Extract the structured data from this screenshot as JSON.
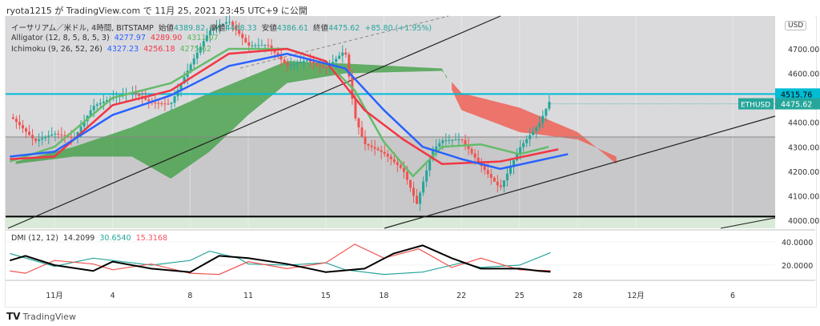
{
  "header": {
    "published": "ryota1215 が TradingView.com で 11月 25, 2021 23:45 UTC+9 に公開"
  },
  "legend": {
    "symbol": "イーサリアム／米ドル, 4時間, BITSTAMP",
    "open_label": "始値",
    "open": "4389.82",
    "high_label": "高値",
    "high": "4488.33",
    "low_label": "安値",
    "low": "4386.61",
    "close_label": "終値",
    "close": "4475.62",
    "change": "+85.80 (+1.95%)",
    "alligator": {
      "label": "Alligator (12, 8, 5, 8, 5, 3)",
      "v1": "4277.97",
      "v2": "4289.90",
      "v3": "4311.07"
    },
    "ichimoku": {
      "label": "Ichimoku (9, 26, 52, 26)",
      "v1": "4327.23",
      "v2": "4256.18",
      "v3": "4275.62"
    },
    "dmi": {
      "label": "DMI (12, 12)",
      "adx": "14.2099",
      "plus": "30.6540",
      "minus": "15.3168"
    }
  },
  "currency": "USD",
  "price_labels": {
    "hline": "4515.76",
    "symbol": "ETHUSD",
    "last": "4475.62"
  },
  "footer": {
    "logo_text": "TradingView"
  },
  "colors": {
    "up": "#26a69a",
    "down": "#ef5350",
    "jaw": "#2962ff",
    "teeth": "#f23645",
    "lips": "#66bb6a",
    "cloud_up": "#43a047",
    "cloud_down": "#f05a4f",
    "hline": "#00bcd4",
    "adx": "#000000"
  },
  "chart_data": {
    "type": "line",
    "price_axis": {
      "ticks": [
        "4000.00",
        "4100.00",
        "4200.00",
        "4300.00",
        "4400.00",
        "4600.00",
        "4700.00"
      ],
      "range": [
        3960,
        4810
      ]
    },
    "dmi_axis": {
      "ticks": [
        "20.0000",
        "40.0000"
      ]
    },
    "x_ticks": [
      {
        "day": 0,
        "label": "11月"
      },
      {
        "day": 3,
        "label": "4"
      },
      {
        "day": 7,
        "label": "8"
      },
      {
        "day": 10,
        "label": "11"
      },
      {
        "day": 14,
        "label": "15"
      },
      {
        "day": 17,
        "label": "18"
      },
      {
        "day": 21,
        "label": "22"
      },
      {
        "day": 24,
        "label": "25"
      },
      {
        "day": 27,
        "label": "28"
      },
      {
        "day": 30,
        "label": "12月"
      },
      {
        "day": 35,
        "label": "6"
      }
    ],
    "price_close": [
      [
        -2.3,
        4420
      ],
      [
        -1,
        4300
      ],
      [
        0,
        4330
      ],
      [
        1,
        4320
      ],
      [
        2,
        4470
      ],
      [
        3,
        4520
      ],
      [
        4,
        4550
      ],
      [
        5,
        4500
      ],
      [
        6,
        4480
      ],
      [
        7,
        4620
      ],
      [
        8,
        4750
      ],
      [
        9,
        4790
      ],
      [
        10,
        4700
      ],
      [
        11,
        4720
      ],
      [
        12,
        4650
      ],
      [
        13,
        4680
      ],
      [
        14,
        4640
      ],
      [
        15,
        4700
      ],
      [
        15.5,
        4420
      ],
      [
        16,
        4300
      ],
      [
        17,
        4250
      ],
      [
        18,
        4180
      ],
      [
        18.7,
        4050
      ],
      [
        19.5,
        4280
      ],
      [
        20,
        4330
      ],
      [
        21,
        4350
      ],
      [
        22,
        4250
      ],
      [
        23,
        4150
      ],
      [
        24,
        4300
      ],
      [
        25,
        4380
      ],
      [
        25.6,
        4475
      ]
    ],
    "alligator_jaw": [
      [
        -2.3,
        4260
      ],
      [
        0,
        4280
      ],
      [
        3,
        4430
      ],
      [
        6,
        4510
      ],
      [
        9,
        4630
      ],
      [
        12,
        4680
      ],
      [
        15,
        4620
      ],
      [
        17,
        4450
      ],
      [
        19,
        4300
      ],
      [
        21,
        4250
      ],
      [
        23,
        4210
      ],
      [
        26.5,
        4270
      ]
    ],
    "alligator_teeth": [
      [
        -2.3,
        4250
      ],
      [
        0,
        4260
      ],
      [
        3,
        4470
      ],
      [
        6,
        4530
      ],
      [
        9,
        4680
      ],
      [
        12,
        4700
      ],
      [
        14,
        4650
      ],
      [
        16,
        4450
      ],
      [
        18,
        4330
      ],
      [
        20,
        4230
      ],
      [
        23,
        4240
      ],
      [
        26,
        4290
      ]
    ],
    "alligator_lips": [
      [
        -2.3,
        4240
      ],
      [
        0,
        4300
      ],
      [
        3,
        4500
      ],
      [
        6,
        4560
      ],
      [
        9,
        4700
      ],
      [
        12,
        4700
      ],
      [
        14,
        4650
      ],
      [
        15.5,
        4530
      ],
      [
        17,
        4320
      ],
      [
        18.5,
        4180
      ],
      [
        20,
        4300
      ],
      [
        22,
        4310
      ],
      [
        24,
        4270
      ],
      [
        25.5,
        4300
      ]
    ],
    "cloud_span_a": [
      [
        -2,
        4240
      ],
      [
        1,
        4300
      ],
      [
        4,
        4380
      ],
      [
        8,
        4520
      ],
      [
        12,
        4650
      ],
      [
        15,
        4640
      ],
      [
        20,
        4620
      ],
      [
        21,
        4450
      ],
      [
        24,
        4360
      ],
      [
        27,
        4330
      ],
      [
        29,
        4260
      ]
    ],
    "cloud_span_b": [
      [
        -2,
        4230
      ],
      [
        1,
        4260
      ],
      [
        4,
        4260
      ],
      [
        6,
        4170
      ],
      [
        8,
        4280
      ],
      [
        10,
        4430
      ],
      [
        12,
        4560
      ],
      [
        15,
        4600
      ],
      [
        20,
        4610
      ],
      [
        21,
        4520
      ],
      [
        24,
        4460
      ],
      [
        27,
        4360
      ],
      [
        29,
        4230
      ]
    ],
    "hlines": [
      {
        "price": 4515.76
      },
      {
        "price": 4340
      },
      {
        "price": 4015
      }
    ],
    "adx": [
      [
        -2.3,
        24
      ],
      [
        -1.5,
        28
      ],
      [
        0,
        20
      ],
      [
        2,
        15
      ],
      [
        3,
        23
      ],
      [
        5,
        17
      ],
      [
        7,
        14
      ],
      [
        8.5,
        28
      ],
      [
        10,
        26
      ],
      [
        12,
        21
      ],
      [
        14,
        14
      ],
      [
        16,
        17
      ],
      [
        17.5,
        30
      ],
      [
        19,
        37
      ],
      [
        20.5,
        26
      ],
      [
        22,
        17
      ],
      [
        24,
        17
      ],
      [
        25,
        15
      ],
      [
        25.6,
        14.2
      ]
    ],
    "plus_di": [
      [
        -2.3,
        30
      ],
      [
        0,
        19
      ],
      [
        2,
        26
      ],
      [
        3,
        24
      ],
      [
        5,
        20
      ],
      [
        7,
        24
      ],
      [
        8,
        32
      ],
      [
        9.5,
        26
      ],
      [
        10,
        21
      ],
      [
        12,
        20
      ],
      [
        14,
        22
      ],
      [
        15,
        16
      ],
      [
        17,
        12
      ],
      [
        19,
        14
      ],
      [
        21,
        22
      ],
      [
        22,
        18
      ],
      [
        24,
        20
      ],
      [
        25.6,
        30.7
      ]
    ],
    "minus_di": [
      [
        -2.3,
        15
      ],
      [
        -1.5,
        13
      ],
      [
        0,
        24
      ],
      [
        2,
        21
      ],
      [
        3,
        16
      ],
      [
        5,
        21
      ],
      [
        7,
        13
      ],
      [
        8.5,
        12
      ],
      [
        10,
        23
      ],
      [
        12,
        17
      ],
      [
        14,
        22
      ],
      [
        15.5,
        38
      ],
      [
        17,
        26
      ],
      [
        18.8,
        34
      ],
      [
        20.5,
        18
      ],
      [
        22,
        26
      ],
      [
        24,
        16
      ],
      [
        25.6,
        15.3
      ]
    ]
  }
}
